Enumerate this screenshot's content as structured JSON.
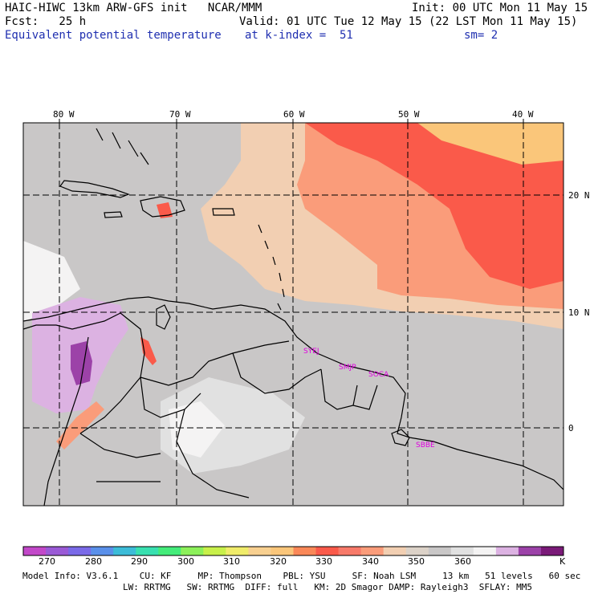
{
  "header": {
    "model_title": "HAIC-HIWC 13km ARW-GFS init   NCAR/MMM",
    "init": "Init: 00 UTC Mon 11 May 15",
    "fcst": "Fcst:   25 h",
    "valid": "Valid: 01 UTC Tue 12 May 15 (22 LST Mon 11 May 15)",
    "field": "Equivalent potential temperature",
    "level": "at k-index =  51",
    "smooth": "sm= 2"
  },
  "map": {
    "lon_labels": [
      "80 W",
      "70 W",
      "60 W",
      "50 W",
      "40 W"
    ],
    "lat_labels": [
      "20 N",
      "10 N",
      "0"
    ],
    "stations": [
      "SYEJ",
      "SMJP",
      "SOCA",
      "SBBE"
    ],
    "colors": {
      "hot": "#fa5a4a",
      "warm": "#fa9c7a",
      "peach": "#f2cfb2",
      "orange": "#fac67a",
      "gray": "#c9c7c7",
      "lightgray": "#e1e1e1",
      "white": "#f4f3f3",
      "lavender": "#dcb2e2",
      "purple": "#9c42a8",
      "station": "#e000e0"
    }
  },
  "colorbar": {
    "labels": [
      "270",
      "280",
      "290",
      "300",
      "310",
      "320",
      "330",
      "340",
      "350",
      "360",
      "K"
    ],
    "colors": [
      "#c248c9",
      "#9a5ad6",
      "#7a6ae8",
      "#5a90ea",
      "#3cbcd8",
      "#38e0b0",
      "#44ec7a",
      "#8cf05a",
      "#c8f04a",
      "#f0ec6a",
      "#f8d090",
      "#fac67a",
      "#fa8858",
      "#fa5a4a",
      "#f87a6a",
      "#fa9c7a",
      "#f2cfb2",
      "#dcd2c8",
      "#c9c7c7",
      "#e1e1e1",
      "#f4f3f3",
      "#dcb2e2",
      "#9c42a8",
      "#7a1a78"
    ]
  },
  "model_info": {
    "line1": "Model Info: V3.6.1    CU: KF     MP: Thompson    PBL: YSU     SF: Noah LSM     13 km   51 levels   60 sec",
    "line2": "LW: RRTMG   SW: RRTMG  DIFF: full   KM: 2D Smagor DAMP: Rayleigh3  SFLAY: MM5"
  }
}
